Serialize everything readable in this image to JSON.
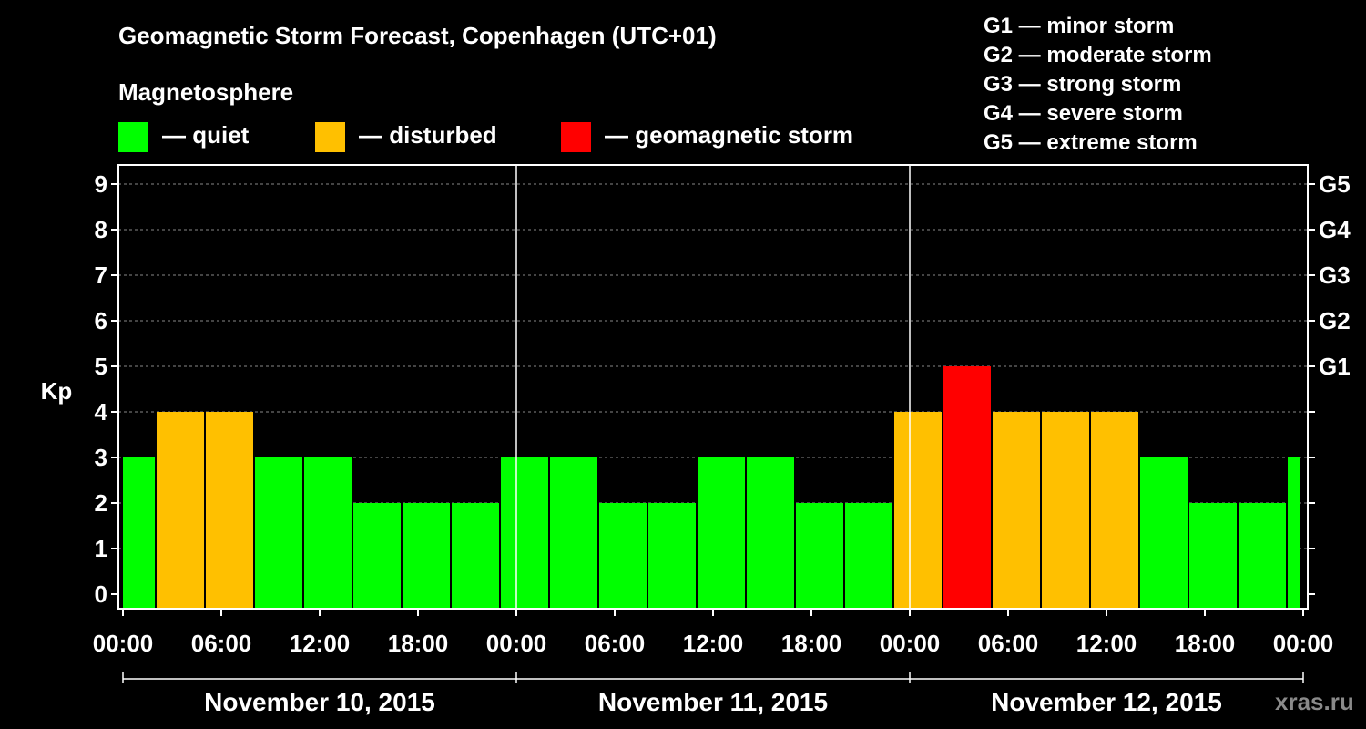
{
  "title": "Geomagnetic Storm Forecast, Copenhagen (UTC+01)",
  "legend": {
    "title": "Magnetosphere",
    "items": [
      {
        "label": "— quiet",
        "color": "#00ff00"
      },
      {
        "label": "— disturbed",
        "color": "#ffc000"
      },
      {
        "label": "— geomagnetic storm",
        "color": "#ff0000"
      }
    ]
  },
  "g_scale": [
    "G1 — minor storm",
    "G2 — moderate storm",
    "G3 — strong storm",
    "G4 — severe storm",
    "G5 — extreme storm"
  ],
  "watermark": "xras.ru",
  "chart_data": {
    "type": "bar",
    "ylabel": "Kp",
    "ylim": [
      0,
      9
    ],
    "yticks": [
      0,
      1,
      2,
      3,
      4,
      5,
      6,
      7,
      8,
      9
    ],
    "right_ticks": [
      {
        "kp": 5,
        "label": "G1"
      },
      {
        "kp": 6,
        "label": "G2"
      },
      {
        "kp": 7,
        "label": "G3"
      },
      {
        "kp": 8,
        "label": "G4"
      },
      {
        "kp": 9,
        "label": "G5"
      }
    ],
    "xtick_labels": [
      "00:00",
      "06:00",
      "12:00",
      "18:00",
      "00:00",
      "06:00",
      "12:00",
      "18:00",
      "00:00",
      "06:00",
      "12:00",
      "18:00",
      "00:00"
    ],
    "days": [
      "November 10, 2015",
      "November 11, 2015",
      "November 12, 2015"
    ],
    "interval_hours": 3,
    "start_hour": -1,
    "values": [
      3,
      4,
      4,
      3,
      3,
      2,
      2,
      2,
      3,
      3,
      2,
      2,
      3,
      3,
      2,
      2,
      4,
      5,
      4,
      4,
      4,
      3,
      2,
      2,
      3
    ],
    "colors": {
      "quiet": "#00ff00",
      "disturbed": "#ffc000",
      "storm": "#ff0000"
    },
    "grid": "dashed horizontal"
  }
}
